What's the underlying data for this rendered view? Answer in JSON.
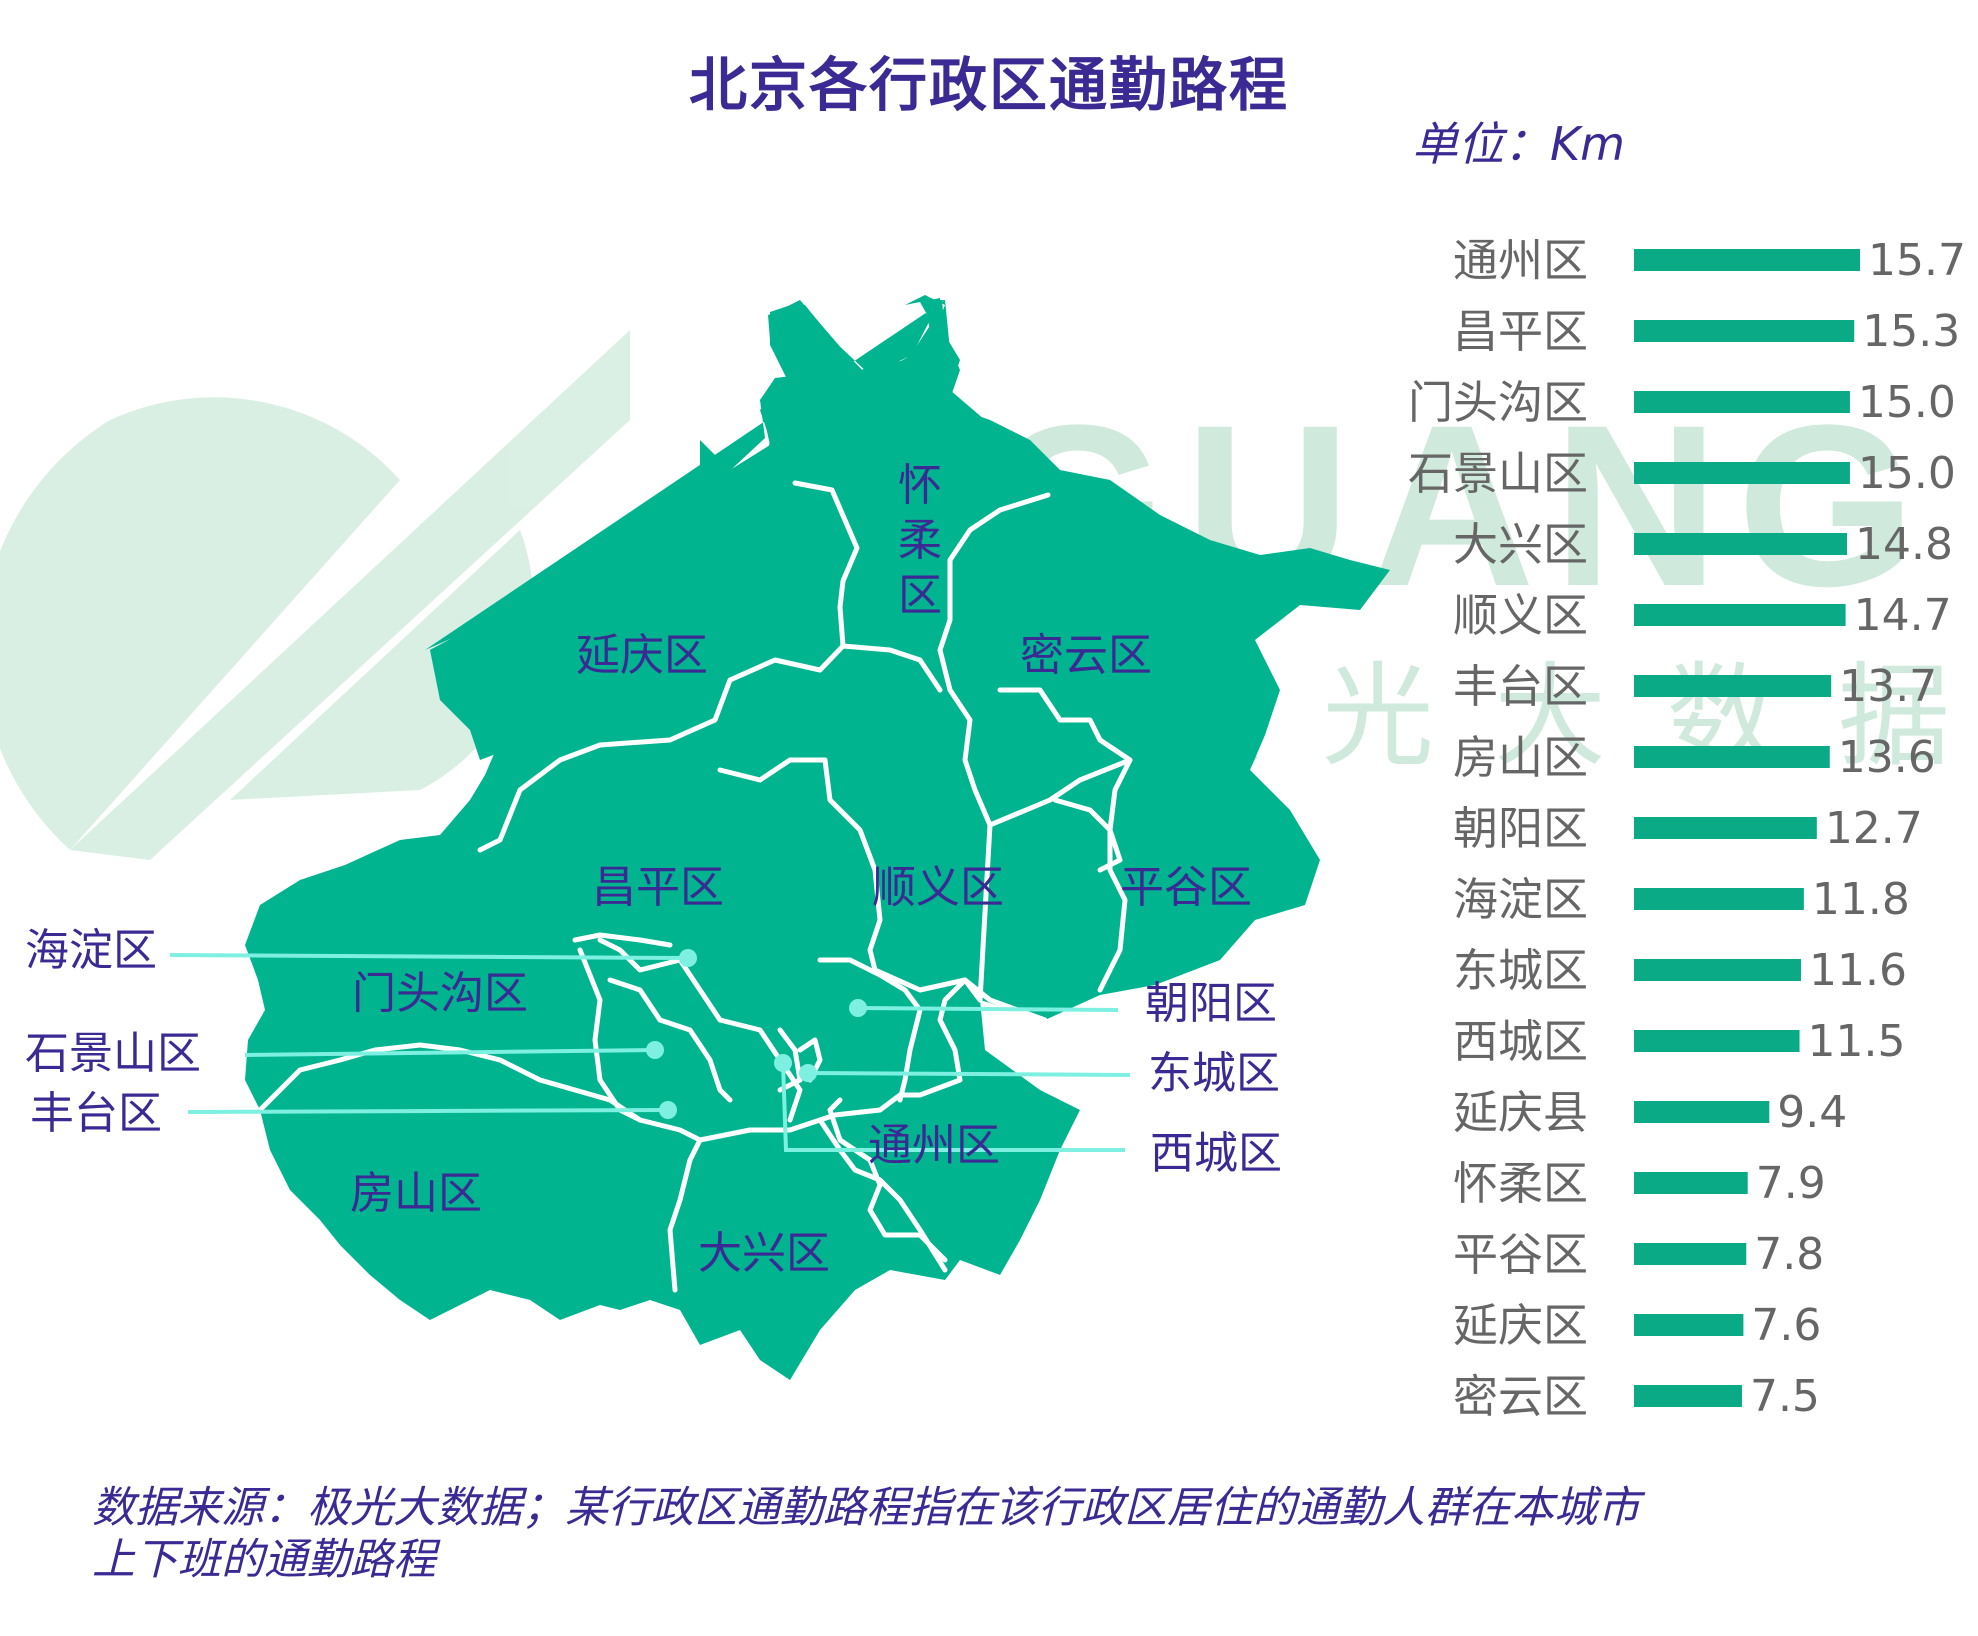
{
  "title": "北京各行政区通勤路程",
  "unit": "单位：Km",
  "watermark": {
    "latin": "JIGUANG",
    "chinese": "极光大数据"
  },
  "source": [
    "数据来源：极光大数据；某行政区通勤路程指在该行政区居住的通勤人群在本城市",
    "上下班的通勤路程"
  ],
  "colors": {
    "map_fill": "#00b48f",
    "bar": "#0aaa86",
    "text": "#3b2a93",
    "leader": "#7ef0e2",
    "watermark": "#cfe9dc"
  },
  "map": {
    "district_labels": {
      "huairou": [
        "怀",
        "柔",
        "区"
      ],
      "yanqing": "延庆区",
      "miyun": "密云区",
      "changping": "昌平区",
      "shunyi": "顺义区",
      "pinggu": "平谷区",
      "mentougou": "门头沟区",
      "fangshan": "房山区",
      "daxing": "大兴区",
      "tongzhou": "通州区"
    },
    "side_labels": {
      "haidian": "海淀区",
      "shijingshan": "石景山区",
      "fengtai": "丰台区",
      "chaoyang": "朝阳区",
      "dongcheng": "东城区",
      "xicheng": "西城区"
    }
  },
  "chart_data": {
    "type": "bar",
    "orientation": "horizontal",
    "title": "北京各行政区通勤路程",
    "unit": "单位：Km",
    "categories": [
      "通州区",
      "昌平区",
      "门头沟区",
      "石景山区",
      "大兴区",
      "顺义区",
      "丰台区",
      "房山区",
      "朝阳区",
      "海淀区",
      "东城区",
      "西城区",
      "延庆县",
      "怀柔区",
      "平谷区",
      "延庆区",
      "密云区"
    ],
    "values": [
      15.7,
      15.3,
      15.0,
      15.0,
      14.8,
      14.7,
      13.7,
      13.6,
      12.7,
      11.8,
      11.6,
      11.5,
      9.4,
      7.9,
      7.8,
      7.6,
      7.5
    ],
    "value_labels": [
      "15.7",
      "15.3",
      "15.0",
      "15.0",
      "14.8",
      "14.7",
      "13.7",
      "13.6",
      "12.7",
      "11.8",
      "11.6",
      "11.5",
      "9.4",
      "7.9",
      "7.8",
      "7.6",
      "7.5"
    ],
    "grid": false,
    "legend": "none"
  }
}
